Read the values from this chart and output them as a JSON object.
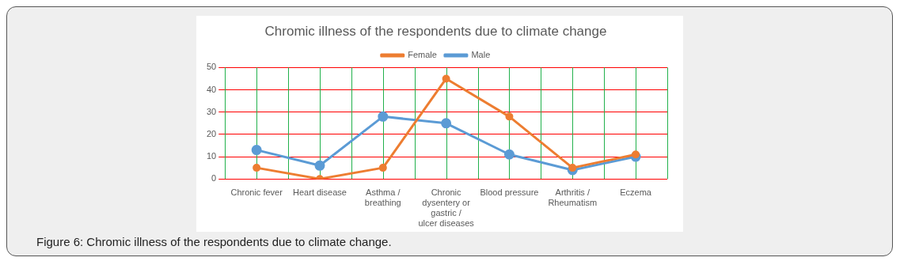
{
  "chart_data": {
    "type": "line",
    "title": "Chromic illness of the respondents due to climate change",
    "categories": [
      "Chronic fever",
      "Heart disease",
      "Asthma / breathing",
      "Chronic dysentery or gastric / ulcer diseases",
      "Blood pressure",
      "Arthritis / Rheumatism",
      "Eczema"
    ],
    "series": [
      {
        "name": "Male",
        "color": "#5b9bd5",
        "values": [
          13,
          6,
          28,
          25,
          11,
          4,
          10
        ]
      },
      {
        "name": "Female",
        "color": "#ed7d31",
        "values": [
          5,
          0,
          5,
          45,
          28,
          5,
          11
        ]
      }
    ],
    "ylim": [
      0,
      50
    ],
    "yticks": [
      0,
      10,
      20,
      30,
      40,
      50
    ],
    "grid": true,
    "legend": "top",
    "marker": "circle",
    "line_style": "solid",
    "annotations": [
      "Figure 6: Chromic illness of the respondents due to climate change."
    ]
  }
}
